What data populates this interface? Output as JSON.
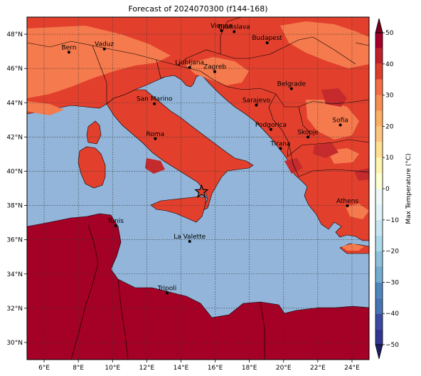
{
  "title": "Forecast of 2024070300 (f144-168)",
  "map": {
    "lon_range": [
      5,
      25
    ],
    "lat_range": [
      29,
      49
    ],
    "lon_ticks": [
      {
        "value": 6,
        "label": "6°E"
      },
      {
        "value": 8,
        "label": "8°E"
      },
      {
        "value": 10,
        "label": "10°E"
      },
      {
        "value": 12,
        "label": "12°E"
      },
      {
        "value": 14,
        "label": "14°E"
      },
      {
        "value": 16,
        "label": "16°E"
      },
      {
        "value": 18,
        "label": "18°E"
      },
      {
        "value": 20,
        "label": "20°E"
      },
      {
        "value": 22,
        "label": "22°E"
      },
      {
        "value": 24,
        "label": "24°E"
      }
    ],
    "lat_ticks": [
      {
        "value": 30,
        "label": "30°N"
      },
      {
        "value": 32,
        "label": "32°N"
      },
      {
        "value": 34,
        "label": "34°N"
      },
      {
        "value": 36,
        "label": "36°N"
      },
      {
        "value": 38,
        "label": "38°N"
      },
      {
        "value": 40,
        "label": "40°N"
      },
      {
        "value": 42,
        "label": "42°N"
      },
      {
        "value": 44,
        "label": "44°N"
      },
      {
        "value": 46,
        "label": "46°N"
      },
      {
        "value": 48,
        "label": "48°N"
      }
    ],
    "grid": true,
    "marker": {
      "lon": 15.2,
      "lat": 38.8,
      "symbol": "star"
    },
    "cities": [
      {
        "name": "Bern",
        "lon": 7.45,
        "lat": 46.95
      },
      {
        "name": "Vaduz",
        "lon": 9.52,
        "lat": 47.14
      },
      {
        "name": "Vienna",
        "lon": 16.37,
        "lat": 48.21
      },
      {
        "name": "Bratislava",
        "lon": 17.11,
        "lat": 48.15
      },
      {
        "name": "Budapest",
        "lon": 19.04,
        "lat": 47.5
      },
      {
        "name": "Ljubljana",
        "lon": 14.51,
        "lat": 46.06
      },
      {
        "name": "Zagreb",
        "lon": 15.98,
        "lat": 45.81
      },
      {
        "name": "Belgrade",
        "lon": 20.46,
        "lat": 44.82
      },
      {
        "name": "San Marino",
        "lon": 12.45,
        "lat": 43.94
      },
      {
        "name": "Sarajevo",
        "lon": 18.41,
        "lat": 43.86
      },
      {
        "name": "Sofia",
        "lon": 23.32,
        "lat": 42.7
      },
      {
        "name": "Roma",
        "lon": 12.5,
        "lat": 41.9
      },
      {
        "name": "Podgorica",
        "lon": 19.26,
        "lat": 42.44
      },
      {
        "name": "Skopje",
        "lon": 21.43,
        "lat": 42.0
      },
      {
        "name": "Tirana",
        "lon": 19.82,
        "lat": 41.33
      },
      {
        "name": "Athens",
        "lon": 23.73,
        "lat": 37.98
      },
      {
        "name": "Tunis",
        "lon": 10.18,
        "lat": 36.81
      },
      {
        "name": "La Valette",
        "lon": 14.51,
        "lat": 35.9
      },
      {
        "name": "Tripoli",
        "lon": 13.19,
        "lat": 32.89
      }
    ]
  },
  "colorbar": {
    "title": "Max Temperature (°C)",
    "ticks": [
      {
        "value": 50,
        "label": "50"
      },
      {
        "value": 40,
        "label": "40"
      },
      {
        "value": 30,
        "label": "30"
      },
      {
        "value": 20,
        "label": "20"
      },
      {
        "value": 10,
        "label": "10"
      },
      {
        "value": 0,
        "label": "0"
      },
      {
        "value": -10,
        "label": "−10"
      },
      {
        "value": -20,
        "label": "−20"
      },
      {
        "value": -30,
        "label": "−30"
      },
      {
        "value": -40,
        "label": "−40"
      },
      {
        "value": -50,
        "label": "−50"
      }
    ],
    "bands": [
      {
        "from": -50,
        "to": -45,
        "color": "#313695"
      },
      {
        "from": -45,
        "to": -40,
        "color": "#3a4aa0"
      },
      {
        "from": -40,
        "to": -35,
        "color": "#4575b4"
      },
      {
        "from": -35,
        "to": -30,
        "color": "#4f86bd"
      },
      {
        "from": -30,
        "to": -25,
        "color": "#74add1"
      },
      {
        "from": -25,
        "to": -20,
        "color": "#8ebfdb"
      },
      {
        "from": -20,
        "to": -15,
        "color": "#abd9e9"
      },
      {
        "from": -15,
        "to": -10,
        "color": "#c6e5f0"
      },
      {
        "from": -10,
        "to": -5,
        "color": "#e0f3f8"
      },
      {
        "from": -5,
        "to": 0,
        "color": "#eef8f6"
      },
      {
        "from": 0,
        "to": 5,
        "color": "#ffffd0"
      },
      {
        "from": 5,
        "to": 10,
        "color": "#fff3b0"
      },
      {
        "from": 10,
        "to": 15,
        "color": "#fee090"
      },
      {
        "from": 15,
        "to": 20,
        "color": "#fdc47e"
      },
      {
        "from": 20,
        "to": 25,
        "color": "#fdae61"
      },
      {
        "from": 25,
        "to": 30,
        "color": "#f88d52"
      },
      {
        "from": 30,
        "to": 35,
        "color": "#f46d43"
      },
      {
        "from": 35,
        "to": 40,
        "color": "#dd3d2d"
      },
      {
        "from": 40,
        "to": 45,
        "color": "#c02128"
      },
      {
        "from": 45,
        "to": 50,
        "color": "#a50026"
      }
    ],
    "under_color": "#1e1e66",
    "over_color": "#7a0020"
  },
  "colors": {
    "sea": "#92b5d9",
    "land_30_35": "#e2402d",
    "land_25_30": "#f57a4d",
    "land_35_40": "#c52a2d",
    "land_over_40": "#a50026"
  }
}
